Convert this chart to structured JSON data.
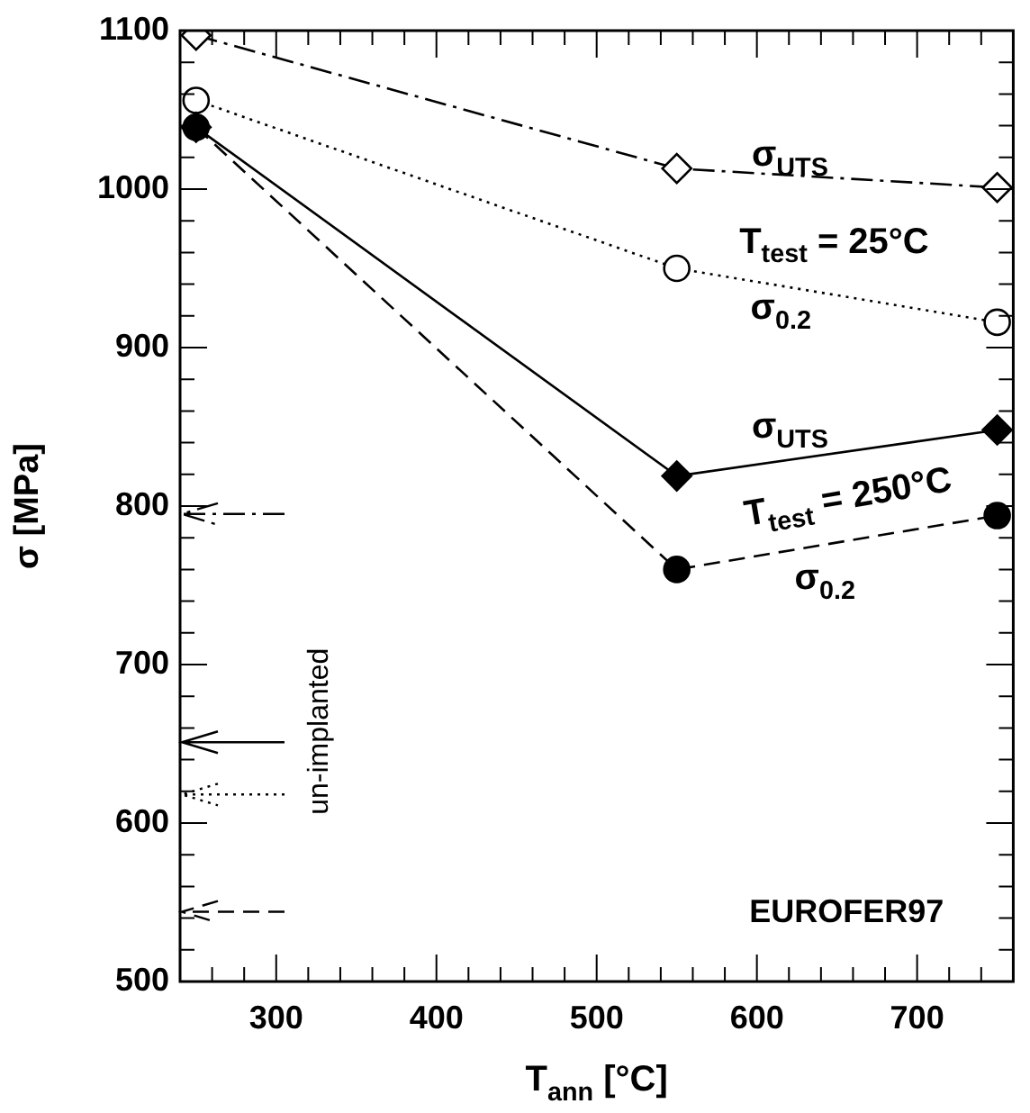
{
  "chart_data": {
    "type": "line",
    "xlabel": "T$_{ann}$ [°C]",
    "ylabel": "σ [MPa]",
    "x": [
      250,
      550,
      750
    ],
    "xlim": [
      240,
      760
    ],
    "ylim": [
      500,
      1100
    ],
    "xticks": [
      {
        "value": 260,
        "label": null
      },
      {
        "value": 280,
        "label": null
      },
      300,
      {
        "value": 320,
        "label": null
      },
      {
        "value": 340,
        "label": null
      },
      {
        "value": 360,
        "label": null
      },
      {
        "value": 380,
        "label": null
      },
      400,
      {
        "value": 420,
        "label": null
      },
      {
        "value": 440,
        "label": null
      },
      {
        "value": 460,
        "label": null
      },
      {
        "value": 480,
        "label": null
      },
      500,
      {
        "value": 520,
        "label": null
      },
      {
        "value": 540,
        "label": null
      },
      {
        "value": 560,
        "label": null
      },
      {
        "value": 580,
        "label": null
      },
      600,
      {
        "value": 620,
        "label": null
      },
      {
        "value": 640,
        "label": null
      },
      {
        "value": 660,
        "label": null
      },
      {
        "value": 680,
        "label": null
      },
      700,
      {
        "value": 720,
        "label": null
      },
      {
        "value": 740,
        "label": null
      }
    ],
    "yticks": [
      500,
      {
        "value": 520,
        "label": null
      },
      {
        "value": 540,
        "label": null
      },
      {
        "value": 560,
        "label": null
      },
      {
        "value": 580,
        "label": null
      },
      600,
      {
        "value": 620,
        "label": null
      },
      {
        "value": 640,
        "label": null
      },
      {
        "value": 660,
        "label": null
      },
      {
        "value": 680,
        "label": null
      },
      700,
      {
        "value": 720,
        "label": null
      },
      {
        "value": 740,
        "label": null
      },
      {
        "value": 760,
        "label": null
      },
      {
        "value": 780,
        "label": null
      },
      800,
      {
        "value": 820,
        "label": null
      },
      {
        "value": 840,
        "label": null
      },
      {
        "value": 860,
        "label": null
      },
      {
        "value": 880,
        "label": null
      },
      900,
      {
        "value": 920,
        "label": null
      },
      {
        "value": 940,
        "label": null
      },
      {
        "value": 960,
        "label": null
      },
      {
        "value": 980,
        "label": null
      },
      1000,
      {
        "value": 1020,
        "label": null
      },
      {
        "value": 1040,
        "label": null
      },
      {
        "value": 1060,
        "label": null
      },
      {
        "value": 1080,
        "label": null
      },
      1100
    ],
    "grid": false,
    "legend": false,
    "series": [
      {
        "color": "#000000",
        "marker": "diamond",
        "line_style": "dashdot",
        "values": [
          1097,
          1013,
          1001
        ]
      },
      {
        "color": "#000000",
        "marker": "circle",
        "line_style": "dotted",
        "values": [
          1056,
          950,
          916
        ]
      },
      {
        "color": "#000000",
        "marker": "diamond",
        "line_style": "solid",
        "values": [
          1039,
          819,
          848
        ]
      },
      {
        "color": "#000000",
        "marker": "circle",
        "line_style": "dashed",
        "values": [
          1039,
          760,
          794
        ]
      }
    ],
    "ref_lines": [
      {
        "axis": "y",
        "value": 795,
        "line_style": "dashdot"
      },
      {
        "axis": "y",
        "value": 651,
        "line_style": "solid"
      },
      {
        "axis": "y",
        "value": 618,
        "line_style": "dotted"
      },
      {
        "axis": "y",
        "value": 544,
        "line_style": "dashed"
      }
    ],
    "annotations": [
      "σ$_{UTS}$",
      "T$_{test}$ = 25°C",
      "σ$_{0.2}$",
      "σ$_{UTS}$",
      "T$_{test}$ = 250°C",
      "σ$_{0.2}$",
      "un-implanted",
      "EUROFER97"
    ]
  }
}
